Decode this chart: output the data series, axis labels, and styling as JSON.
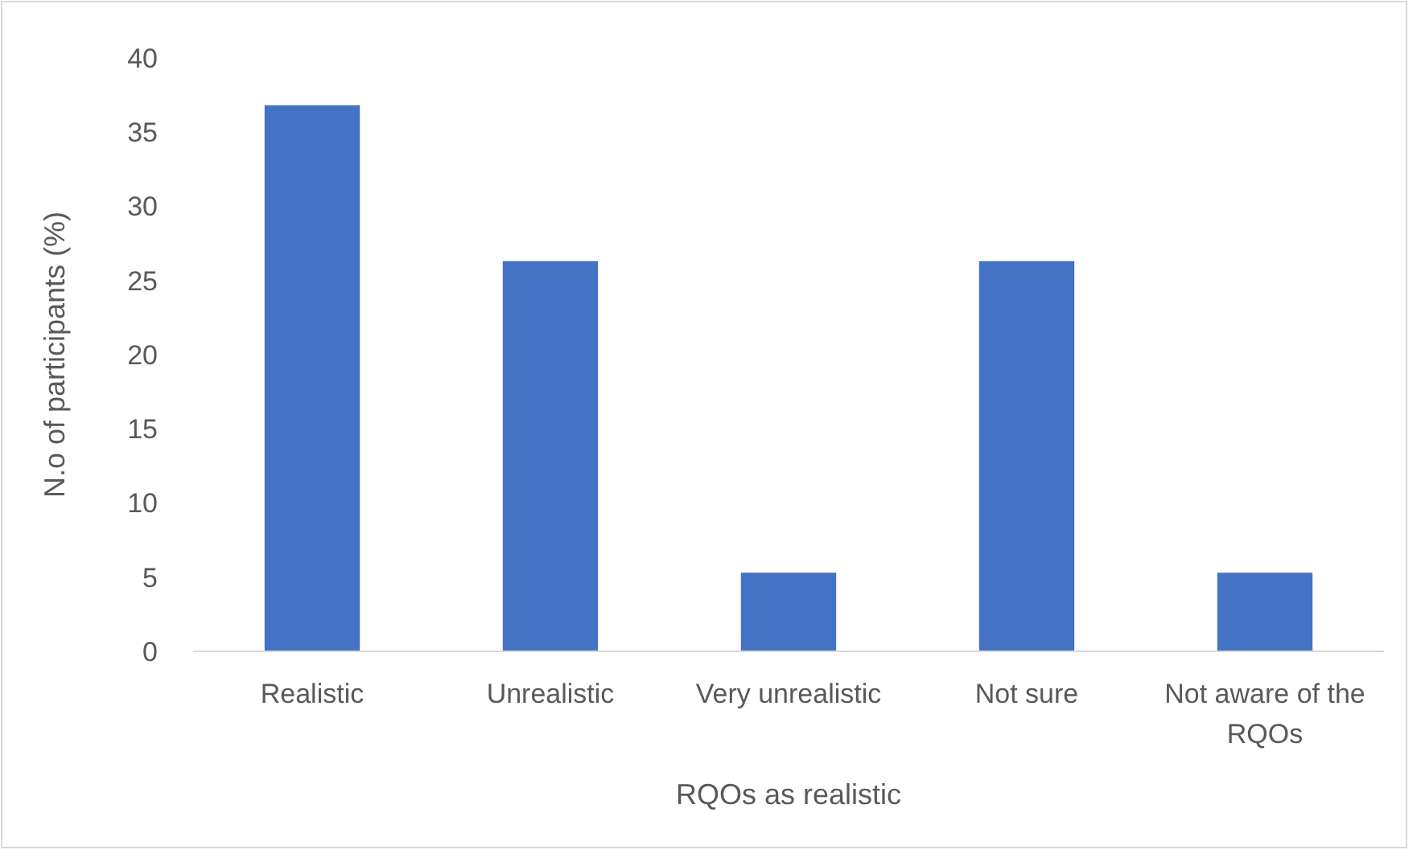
{
  "chart_data": {
    "type": "bar",
    "xlabel": "RQOs as realistic",
    "ylabel": "N.o of participants (%)",
    "categories": [
      "Realistic",
      "Unrealistic",
      "Very unrealistic",
      "Not sure",
      "Not aware of the RQOs"
    ],
    "values": [
      36.8,
      26.3,
      5.3,
      26.3,
      5.3
    ],
    "color": "#4472c4",
    "ylim": [
      0,
      40
    ],
    "yticks": [
      0,
      5,
      10,
      15,
      20,
      25,
      30,
      35,
      40
    ],
    "grid": false
  }
}
